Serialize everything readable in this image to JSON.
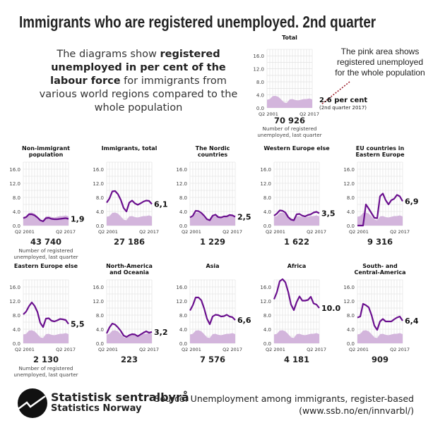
{
  "title": "Immigrants who are registered unemployed. 2nd quarter",
  "intro": {
    "p1": "The diagrams show ",
    "bold": "registered unemployed in per cent of the labour force",
    "p2": " for immigrants from various world regions compared to the whole population"
  },
  "pink_note": "The pink area shows registered unemployed for the whole population",
  "footer": {
    "logo_line1": "Statistisk sentralbyrå",
    "logo_line2": "Statistics Norway",
    "source_line1": "Source: Unemployment among immigrants, register-based",
    "source_line2": "(www.ssb.no/en/innvarbl/)"
  },
  "colors": {
    "line": "#6a0f8e",
    "area": "#d3b5dc",
    "grid": "#dddddd"
  },
  "chart_data": [
    {
      "type": "area",
      "id": "total",
      "title": [
        "Total"
      ],
      "x_start": "Q2 2001",
      "x_end": "Q2 2017",
      "yticks": [
        "0.0",
        "4.0",
        "8.0",
        "12.0",
        "16.0"
      ],
      "ylim": [
        0,
        18
      ],
      "value_label": "2.6 per cent",
      "value_sub": "(2nd quarter 2017)",
      "count": "70 926",
      "count_note": [
        "Number of registered",
        "unemployed, last quarter"
      ],
      "values": null
    },
    {
      "type": "line",
      "id": "nonimm",
      "title": [
        "Non-immigrant",
        "population"
      ],
      "x_start": "Q2 2001",
      "x_end": "Q2 2017",
      "yticks": [
        "0.0",
        "4.0",
        "8.0",
        "12.0",
        "16.0"
      ],
      "ylim": [
        0,
        18
      ],
      "value_label": "1,9",
      "count": "43 740",
      "count_note": [
        "Number of registered",
        "unemployed, last quarter"
      ],
      "values": [
        2.1,
        2.4,
        3.2,
        3.2,
        2.9,
        2.3,
        1.5,
        1.2,
        2.1,
        2.2,
        1.9,
        1.8,
        1.8,
        1.9,
        2.0,
        2.1,
        1.9
      ]
    },
    {
      "type": "line",
      "id": "immtotal",
      "title": [
        "Immigrants, total"
      ],
      "x_start": "Q2 2001",
      "x_end": "Q2 2017",
      "yticks": [
        "0.0",
        "4.0",
        "8.0",
        "12.0",
        "16.0"
      ],
      "ylim": [
        0,
        18
      ],
      "value_label": "6,1",
      "count": "27 186",
      "values": [
        6.5,
        7.7,
        9.7,
        9.8,
        8.9,
        7.3,
        5.0,
        4.0,
        6.5,
        7.1,
        6.3,
        5.9,
        6.3,
        6.8,
        7.1,
        7.0,
        6.1
      ]
    },
    {
      "type": "line",
      "id": "nordic",
      "title": [
        "The Nordic",
        "countries"
      ],
      "x_start": "Q2 2001",
      "x_end": "Q2 2017",
      "yticks": [
        "0.0",
        "4.0",
        "8.0",
        "12.0",
        "16.0"
      ],
      "ylim": [
        0,
        18
      ],
      "value_label": "2,5",
      "count": "1 229",
      "values": [
        2.3,
        2.8,
        4.2,
        4.1,
        3.6,
        2.8,
        1.8,
        1.5,
        2.8,
        3.1,
        2.4,
        2.3,
        2.6,
        2.6,
        3.0,
        2.9,
        2.5
      ]
    },
    {
      "type": "line",
      "id": "western",
      "title": [
        "Western Europe else"
      ],
      "x_start": "Q2 2001",
      "x_end": "Q2 2017",
      "yticks": [
        "0.0",
        "4.0",
        "8.0",
        "12.0",
        "16.0"
      ],
      "ylim": [
        0,
        18
      ],
      "value_label": "3,5",
      "count": "1 622",
      "values": [
        2.8,
        3.4,
        4.3,
        4.2,
        3.7,
        2.4,
        1.7,
        1.5,
        3.2,
        3.3,
        2.8,
        2.6,
        3.0,
        3.2,
        3.7,
        3.9,
        3.5
      ]
    },
    {
      "type": "line",
      "id": "eueast",
      "title": [
        "EU countries in",
        "Eastern Europe"
      ],
      "x_start": "Q2 2001",
      "x_end": "Q2 2017",
      "yticks": [
        "0.0",
        "4.0",
        "8.0",
        "12.0",
        "16.0"
      ],
      "ylim": [
        0,
        18
      ],
      "value_label": "6,9",
      "count": "9 316",
      "values": [
        0,
        0,
        0,
        6.0,
        4.8,
        3.5,
        2.2,
        2.1,
        8.3,
        9.1,
        7.2,
        6.0,
        7.2,
        7.6,
        8.7,
        8.3,
        6.9
      ]
    },
    {
      "type": "line",
      "id": "easternelse",
      "title": [
        "Eastern Europe else"
      ],
      "x_start": "Q2 2001",
      "x_end": "Q2 2017",
      "yticks": [
        "0.0",
        "4.0",
        "8.0",
        "12.0",
        "16.0"
      ],
      "ylim": [
        0,
        18
      ],
      "value_label": "5,5",
      "count": "2 130",
      "count_note": [
        "Number of registered",
        "unemployed, last quarter"
      ],
      "values": [
        8.2,
        9.0,
        10.5,
        11.6,
        10.6,
        8.9,
        5.8,
        4.6,
        7.0,
        7.1,
        6.4,
        6.2,
        6.5,
        6.9,
        6.8,
        6.6,
        5.5
      ]
    },
    {
      "type": "line",
      "id": "na",
      "title": [
        "North-America",
        "and Oceania"
      ],
      "x_start": "Q2 2001",
      "x_end": "Q2 2017",
      "yticks": [
        "0.0",
        "4.0",
        "8.0",
        "12.0",
        "16.0"
      ],
      "ylim": [
        0,
        18
      ],
      "value_label": "3,2",
      "count": "223",
      "values": [
        2.8,
        4.5,
        5.6,
        5.3,
        4.5,
        3.5,
        2.2,
        1.8,
        2.3,
        2.6,
        2.5,
        2.0,
        2.5,
        3.0,
        3.4,
        3.0,
        3.2
      ]
    },
    {
      "type": "line",
      "id": "asia",
      "title": [
        "Asia"
      ],
      "x_start": "Q2 2001",
      "x_end": "Q2 2017",
      "yticks": [
        "0.0",
        "4.0",
        "8.0",
        "12.0",
        "16.0"
      ],
      "ylim": [
        0,
        18
      ],
      "value_label": "6,6",
      "count": "7 576",
      "values": [
        9.3,
        10.8,
        13.0,
        13.0,
        12.2,
        9.9,
        7.0,
        5.4,
        7.6,
        8.1,
        8.0,
        7.6,
        7.7,
        8.1,
        7.6,
        7.4,
        6.6
      ]
    },
    {
      "type": "line",
      "id": "africa",
      "title": [
        "Africa"
      ],
      "x_start": "Q2 2001",
      "x_end": "Q2 2017",
      "yticks": [
        "0.0",
        "4.0",
        "8.0",
        "12.0",
        "16.0"
      ],
      "ylim": [
        0,
        18
      ],
      "value_label": "10.0",
      "count": "4 181",
      "values": [
        12.5,
        14.5,
        17.6,
        18.2,
        17.3,
        14.6,
        11.0,
        9.4,
        11.7,
        13.3,
        12.1,
        12.1,
        12.3,
        13.2,
        11.3,
        11.0,
        10.0
      ]
    },
    {
      "type": "line",
      "id": "sca",
      "title": [
        "South- and",
        "Central-America"
      ],
      "x_start": "Q2 2001",
      "x_end": "Q2 2017",
      "yticks": [
        "0.0",
        "4.0",
        "8.0",
        "12.0",
        "16.0"
      ],
      "ylim": [
        0,
        18
      ],
      "value_label": "6,4",
      "count": "909",
      "values": [
        7.3,
        7.6,
        11.2,
        10.8,
        10.2,
        8.0,
        5.0,
        3.8,
        6.2,
        6.9,
        6.2,
        6.2,
        6.2,
        6.8,
        7.3,
        7.6,
        6.4
      ]
    }
  ],
  "whole_population": [
    2.5,
    2.7,
    3.6,
    3.7,
    3.4,
    2.6,
    1.7,
    1.5,
    2.6,
    2.7,
    2.4,
    2.3,
    2.5,
    2.7,
    2.7,
    2.9,
    2.6
  ]
}
